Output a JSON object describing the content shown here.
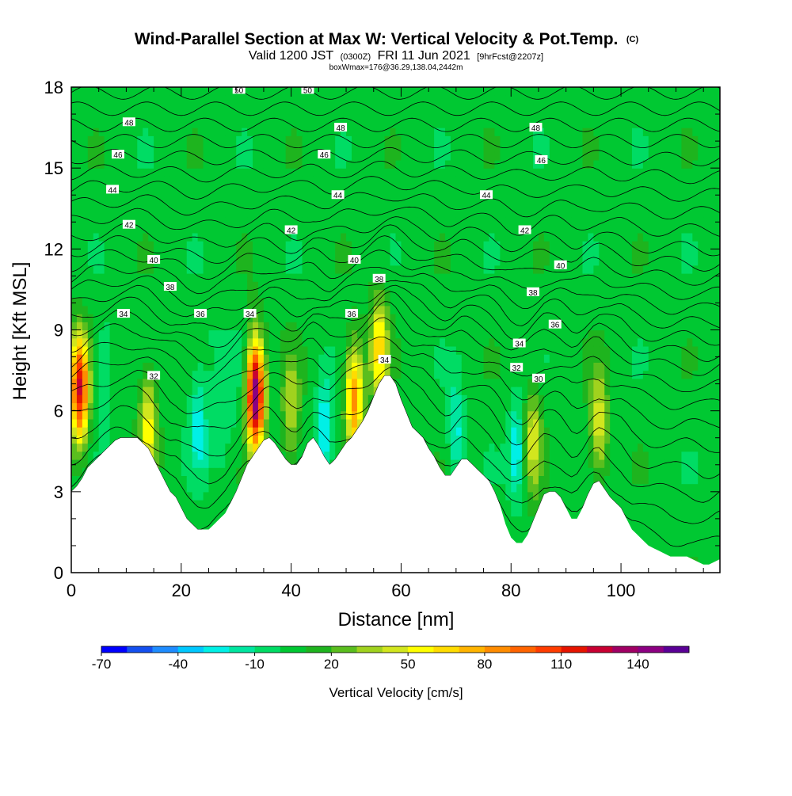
{
  "header": {
    "title_main": "Wind-Parallel Section at Max W: Vertical Velocity & Pot.Temp.",
    "title_mark": "(C)",
    "valid_prefix": "Valid 1200 JST",
    "valid_zulu": "(0300Z)",
    "valid_date": "FRI 11 Jun 2021",
    "valid_fcst": "[9hrFcst@2207z]",
    "box_info": "boxWmax=176@36.29,138.04,2442m"
  },
  "chart_data": {
    "type": "heatmap",
    "xlabel": "Distance [nm]",
    "ylabel": "Height [Kft MSL]",
    "xlim": [
      0,
      118
    ],
    "ylim": [
      0,
      18
    ],
    "x_ticks": [
      0,
      20,
      40,
      60,
      80,
      100
    ],
    "x_tick_labels": [
      "0",
      "20",
      "40",
      "60",
      "80",
      "100"
    ],
    "y_ticks": [
      0,
      3,
      6,
      9,
      12,
      15,
      18
    ],
    "y_tick_labels": [
      "0",
      "3",
      "6",
      "9",
      "12",
      "15",
      "18"
    ],
    "colorbar": {
      "label": "Vertical Velocity [cm/s]",
      "tick_labels": [
        "-70",
        "-40",
        "-10",
        "20",
        "50",
        "80",
        "110",
        "140"
      ],
      "levels": [
        -70,
        -60,
        -50,
        -40,
        -30,
        -20,
        -10,
        0,
        10,
        20,
        30,
        40,
        50,
        60,
        70,
        80,
        90,
        100,
        110,
        120,
        130,
        140,
        150
      ],
      "colors": [
        "#0000ff",
        "#1450f0",
        "#1e8cff",
        "#00c8ff",
        "#00f0e6",
        "#00e6a0",
        "#00dc64",
        "#00c832",
        "#1eb41e",
        "#5abe1e",
        "#a0d21e",
        "#d2e61e",
        "#ffff00",
        "#ffdc00",
        "#ffb400",
        "#ff8c00",
        "#ff6400",
        "#ff3c00",
        "#e61400",
        "#c80032",
        "#a00064",
        "#8c0082",
        "#5a0096"
      ]
    },
    "terrain": {
      "x": [
        0,
        1,
        2,
        3,
        4,
        5,
        6,
        7,
        8,
        9,
        10,
        11,
        12,
        13,
        14,
        15,
        16,
        17,
        18,
        19,
        20,
        21,
        22,
        23,
        24,
        25,
        26,
        27,
        28,
        29,
        30,
        31,
        32,
        33,
        34,
        35,
        36,
        37,
        38,
        39,
        40,
        41,
        42,
        43,
        44,
        45,
        46,
        47,
        48,
        49,
        50,
        51,
        52,
        53,
        54,
        55,
        56,
        57,
        58,
        59,
        60,
        61,
        62,
        63,
        64,
        65,
        66,
        67,
        68,
        69,
        70,
        71,
        72,
        73,
        74,
        75,
        76,
        77,
        78,
        79,
        80,
        81,
        82,
        83,
        84,
        85,
        86,
        87,
        88,
        89,
        90,
        91,
        92,
        93,
        94,
        95,
        96,
        97,
        98,
        99,
        100,
        101,
        102,
        103,
        104,
        105,
        106,
        107,
        108,
        109,
        110,
        111,
        112,
        113,
        114,
        115,
        116,
        117,
        118
      ],
      "height_kft": [
        3.0,
        3.2,
        3.5,
        3.9,
        4.1,
        4.3,
        4.5,
        4.7,
        4.9,
        5.0,
        5.0,
        5.0,
        5.0,
        4.8,
        4.6,
        4.2,
        3.8,
        3.4,
        3.0,
        2.8,
        2.4,
        2.0,
        1.8,
        1.6,
        1.6,
        1.6,
        1.8,
        2.0,
        2.2,
        2.6,
        3.0,
        3.5,
        4.0,
        4.3,
        4.6,
        4.9,
        5.0,
        4.8,
        4.5,
        4.2,
        4.0,
        4.0,
        4.3,
        4.8,
        5.0,
        4.7,
        4.3,
        4.0,
        4.2,
        4.5,
        4.8,
        5.0,
        5.3,
        5.6,
        6.0,
        6.5,
        7.0,
        7.3,
        7.3,
        7.0,
        6.4,
        5.9,
        5.4,
        5.2,
        5.0,
        4.6,
        4.3,
        3.9,
        3.6,
        3.6,
        3.9,
        4.2,
        4.2,
        4.0,
        3.8,
        3.6,
        3.4,
        3.0,
        2.5,
        1.8,
        1.3,
        1.1,
        1.1,
        1.4,
        1.9,
        2.4,
        2.9,
        3.0,
        3.0,
        2.8,
        2.4,
        2.0,
        2.0,
        2.4,
        2.9,
        3.3,
        3.4,
        3.1,
        2.8,
        2.6,
        2.4,
        2.0,
        1.6,
        1.4,
        1.2,
        1.0,
        0.9,
        0.8,
        0.7,
        0.6,
        0.6,
        0.6,
        0.6,
        0.5,
        0.4,
        0.3,
        0.3,
        0.4,
        0.5
      ]
    },
    "updraft_cores": [
      {
        "x": 1.5,
        "z": 6.8,
        "w": 115
      },
      {
        "x": 33.5,
        "z": 6.6,
        "w": 150
      },
      {
        "x": 51.5,
        "z": 6.5,
        "w": 80
      },
      {
        "x": 56.0,
        "z": 8.3,
        "w": 60
      },
      {
        "x": 14.0,
        "z": 5.5,
        "w": 50
      },
      {
        "x": 96.0,
        "z": 5.5,
        "w": 45
      },
      {
        "x": 84.0,
        "z": 5.0,
        "w": 40
      },
      {
        "x": 40.0,
        "z": 6.0,
        "w": 35
      }
    ],
    "downdraft_cores": [
      {
        "x": 46.0,
        "z": 5.3,
        "w": -40
      },
      {
        "x": 81.0,
        "z": 4.5,
        "w": -35
      },
      {
        "x": 23.0,
        "z": 5.5,
        "w": -25
      },
      {
        "x": 70.0,
        "z": 5.2,
        "w": -30
      },
      {
        "x": 6.0,
        "z": 7.5,
        "w": -20
      }
    ],
    "isentropes_labels": [
      {
        "text": "50",
        "x": 30.5,
        "z": 17.9
      },
      {
        "text": "50",
        "x": 43.0,
        "z": 17.9
      },
      {
        "text": "48",
        "x": 10.5,
        "z": 16.7
      },
      {
        "text": "48",
        "x": 49.0,
        "z": 16.5
      },
      {
        "text": "48",
        "x": 84.5,
        "z": 16.5
      },
      {
        "text": "46",
        "x": 8.5,
        "z": 15.5
      },
      {
        "text": "46",
        "x": 46.0,
        "z": 15.5
      },
      {
        "text": "46",
        "x": 85.5,
        "z": 15.3
      },
      {
        "text": "44",
        "x": 7.5,
        "z": 14.2
      },
      {
        "text": "44",
        "x": 48.5,
        "z": 14.0
      },
      {
        "text": "44",
        "x": 75.5,
        "z": 14.0
      },
      {
        "text": "42",
        "x": 10.5,
        "z": 12.9
      },
      {
        "text": "42",
        "x": 40.0,
        "z": 12.7
      },
      {
        "text": "42",
        "x": 82.5,
        "z": 12.7
      },
      {
        "text": "40",
        "x": 15.0,
        "z": 11.6
      },
      {
        "text": "40",
        "x": 51.5,
        "z": 11.6
      },
      {
        "text": "40",
        "x": 89.0,
        "z": 11.4
      },
      {
        "text": "38",
        "x": 18.0,
        "z": 10.6
      },
      {
        "text": "38",
        "x": 56.0,
        "z": 10.9
      },
      {
        "text": "38",
        "x": 84.0,
        "z": 10.4
      },
      {
        "text": "36",
        "x": 23.5,
        "z": 9.6
      },
      {
        "text": "36",
        "x": 51.0,
        "z": 9.6
      },
      {
        "text": "36",
        "x": 88.0,
        "z": 9.2
      },
      {
        "text": "34",
        "x": 9.5,
        "z": 9.6
      },
      {
        "text": "34",
        "x": 32.5,
        "z": 9.6
      },
      {
        "text": "34",
        "x": 81.5,
        "z": 8.5
      },
      {
        "text": "34",
        "x": 57.0,
        "z": 7.9
      },
      {
        "text": "32",
        "x": 15.0,
        "z": 7.3
      },
      {
        "text": "32",
        "x": 81.0,
        "z": 7.6
      },
      {
        "text": "30",
        "x": 85.0,
        "z": 7.2
      }
    ],
    "isentrope_levels_kft": [
      17.8,
      17.2,
      16.6,
      16.0,
      15.4,
      14.8,
      14.2,
      13.6,
      13.0,
      12.4,
      11.9,
      11.4,
      10.9,
      10.4,
      9.9,
      9.4,
      8.9,
      8.4,
      7.8,
      7.2,
      6.5,
      5.8,
      5.0,
      4.2,
      3.4,
      2.6
    ]
  }
}
